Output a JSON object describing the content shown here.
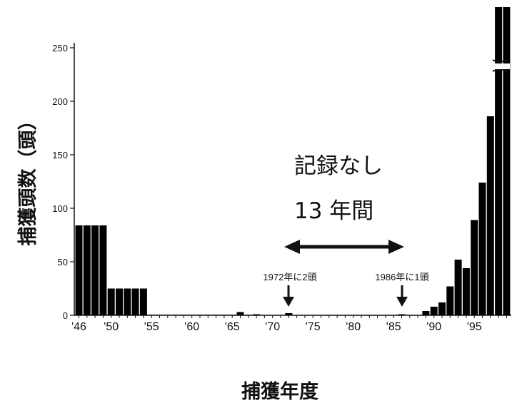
{
  "chart_data": {
    "type": "bar",
    "xlabel": "捕獲年度",
    "ylabel": "捕獲頭数（頭）",
    "ylim": [
      0,
      250
    ],
    "y_ticks": [
      "0",
      "50",
      "100",
      "150",
      "200",
      "250"
    ],
    "y_axis_break": true,
    "x_tick_labels": [
      "'46",
      "'50",
      "'55",
      "'60",
      "'65",
      "'70",
      "'75",
      "'80",
      "'85",
      "'90",
      "'95"
    ],
    "x": [
      1946,
      1947,
      1948,
      1949,
      1950,
      1951,
      1952,
      1953,
      1954,
      1955,
      1956,
      1957,
      1958,
      1959,
      1960,
      1961,
      1962,
      1963,
      1964,
      1965,
      1966,
      1967,
      1968,
      1969,
      1970,
      1971,
      1972,
      1973,
      1974,
      1975,
      1976,
      1977,
      1978,
      1979,
      1980,
      1981,
      1982,
      1983,
      1984,
      1985,
      1986,
      1987,
      1988,
      1989,
      1990,
      1991,
      1992,
      1993,
      1994,
      1995,
      1996,
      1997,
      1998,
      1999
    ],
    "values": [
      84,
      84,
      84,
      84,
      25,
      25,
      25,
      25,
      25,
      0.5,
      0.5,
      0.5,
      0.5,
      0.5,
      0.5,
      0.5,
      0.5,
      0.5,
      0.5,
      0.5,
      3,
      0.5,
      1,
      0,
      0,
      0,
      2,
      0,
      0,
      0,
      0,
      0,
      0,
      0,
      0,
      0,
      0,
      0,
      0,
      0,
      1,
      0,
      0,
      4,
      8,
      12,
      27,
      52,
      44,
      89,
      124,
      186,
      290,
      258
    ],
    "annotations": {
      "no_record": "記録なし",
      "years": "13 年間",
      "note_1972": "1972年に2頭",
      "note_1986": "1986年に1頭"
    }
  }
}
